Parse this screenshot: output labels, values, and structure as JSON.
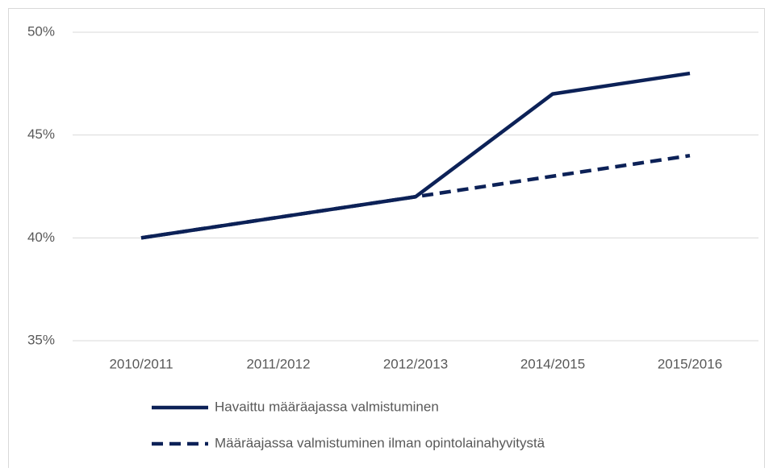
{
  "chart_data": {
    "type": "line",
    "categories": [
      "2010/2011",
      "2011/2012",
      "2012/2013",
      "2014/2015",
      "2015/2016"
    ],
    "series": [
      {
        "name": "Havaittu määräajassa  valmistuminen",
        "color": "#0c2157",
        "line_style": "solid",
        "values": [
          40,
          41,
          42,
          47,
          48
        ]
      },
      {
        "name": "Määräajassa valmistuminen ilman opintolainahyvitystä",
        "color": "#0c2157",
        "line_style": "dashed",
        "values": [
          40,
          41,
          42,
          43,
          44
        ]
      }
    ],
    "ylim": [
      35,
      50
    ],
    "yticks": [
      {
        "value": 35,
        "label": "35%"
      },
      {
        "value": 40,
        "label": "40%"
      },
      {
        "value": 45,
        "label": "45%"
      },
      {
        "value": 50,
        "label": "50%"
      }
    ],
    "grid": true,
    "legend": "bottom"
  }
}
